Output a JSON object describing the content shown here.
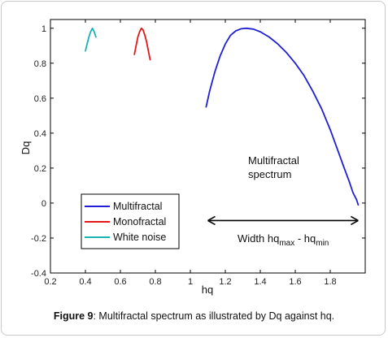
{
  "colors": {
    "multifractal": "#1f1fd6",
    "monofractal": "#e01818",
    "white_noise": "#19b3b3",
    "axis": "#000000",
    "frame_border": "#c9c9c9"
  },
  "caption": {
    "label": "Figure 9",
    "text": ": Multifractal spectrum as illustrated by Dq against hq."
  },
  "chart_data": {
    "type": "line",
    "title": "",
    "xlabel": "hq",
    "ylabel": "Dq",
    "xlim": [
      0.2,
      2.0
    ],
    "ylim": [
      -0.4,
      1.05
    ],
    "grid": false,
    "legend_position": "bottom-left",
    "x_ticks": [
      0.2,
      0.4,
      0.6,
      0.8,
      1.0,
      1.2,
      1.4,
      1.6,
      1.8
    ],
    "x_tick_labels": [
      "0.2",
      "0.4",
      "0.6",
      "0.8",
      "1",
      "1.2",
      "1.4",
      "1.6",
      "1.8"
    ],
    "y_ticks": [
      -0.4,
      -0.2,
      0,
      0.2,
      0.4,
      0.6,
      0.8,
      1.0
    ],
    "y_tick_labels": [
      "-0.4",
      "-0.2",
      "0",
      "0.2",
      "0.4",
      "0.6",
      "0.8",
      "1"
    ],
    "series": [
      {
        "name": "Multifractal",
        "color": "#1f1fd6",
        "x": [
          1.09,
          1.11,
          1.14,
          1.17,
          1.2,
          1.23,
          1.26,
          1.29,
          1.32,
          1.36,
          1.4,
          1.45,
          1.5,
          1.55,
          1.6,
          1.65,
          1.7,
          1.75,
          1.8,
          1.84,
          1.88,
          1.91,
          1.93,
          1.95,
          1.96
        ],
        "y": [
          0.55,
          0.64,
          0.75,
          0.84,
          0.91,
          0.96,
          0.985,
          0.997,
          1.0,
          0.995,
          0.98,
          0.95,
          0.91,
          0.86,
          0.8,
          0.73,
          0.64,
          0.54,
          0.42,
          0.31,
          0.2,
          0.12,
          0.06,
          0.02,
          -0.01
        ]
      },
      {
        "name": "Monofractal",
        "color": "#e01818",
        "x": [
          0.68,
          0.69,
          0.7,
          0.71,
          0.72,
          0.73,
          0.74,
          0.75,
          0.76,
          0.77
        ],
        "y": [
          0.85,
          0.9,
          0.95,
          0.98,
          1.0,
          0.99,
          0.96,
          0.92,
          0.87,
          0.82
        ]
      },
      {
        "name": "White noise",
        "color": "#19b3b3",
        "x": [
          0.4,
          0.41,
          0.42,
          0.43,
          0.44,
          0.45,
          0.46
        ],
        "y": [
          0.87,
          0.91,
          0.95,
          0.98,
          1.0,
          0.98,
          0.95
        ]
      }
    ],
    "annotations": {
      "spectrum_line1": "Multifractal",
      "spectrum_line2": "spectrum",
      "width_text": "Width hq",
      "width_sub_max": "max",
      "width_mid": " - hq",
      "width_sub_min": "min",
      "width_arrow_from_x": 1.1,
      "width_arrow_to_x": 1.96,
      "width_arrow_y": -0.1
    }
  }
}
